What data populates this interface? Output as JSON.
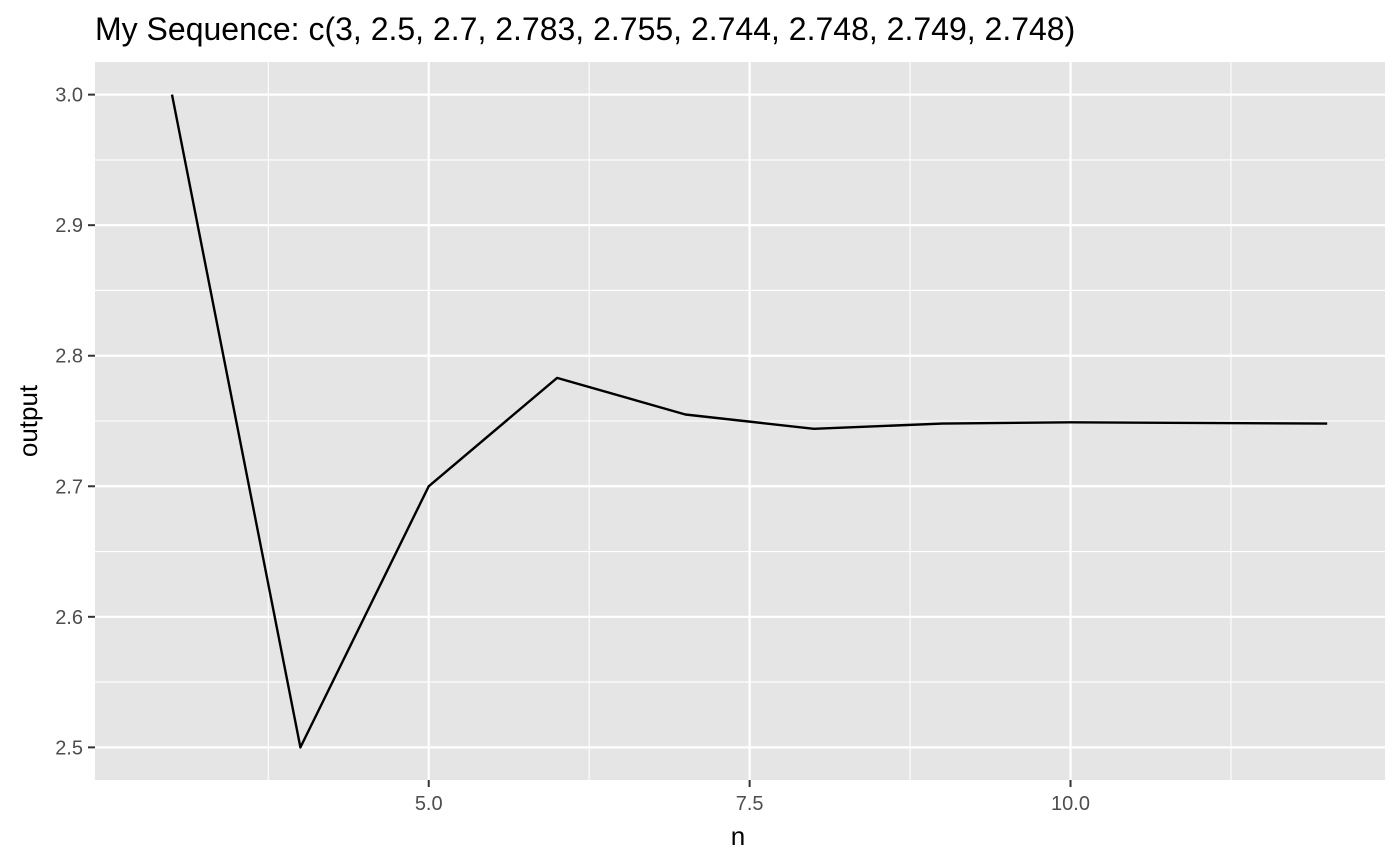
{
  "chart_data": {
    "type": "line",
    "title": "My Sequence: c(3, 2.5, 2.7, 2.783, 2.755, 2.744, 2.748, 2.749, 2.748)",
    "xlabel": "n",
    "ylabel": "output",
    "x": [
      3,
      4,
      5,
      6,
      7,
      8,
      9,
      10,
      12
    ],
    "y": [
      3.0,
      2.5,
      2.7,
      2.783,
      2.755,
      2.744,
      2.748,
      2.749,
      2.748
    ],
    "xlim": [
      2.4,
      12.45
    ],
    "ylim": [
      2.475,
      3.025
    ],
    "x_ticks": [
      5.0,
      7.5,
      10.0
    ],
    "x_tick_labels": [
      "5.0",
      "7.5",
      "10.0"
    ],
    "x_minor_ticks": [
      3.75,
      6.25,
      8.75,
      11.25
    ],
    "y_ticks": [
      2.5,
      2.6,
      2.7,
      2.8,
      2.9,
      3.0
    ],
    "y_tick_labels": [
      "2.5",
      "2.6",
      "2.7",
      "2.8",
      "2.9",
      "3.0"
    ],
    "y_minor_ticks": [
      2.55,
      2.65,
      2.75,
      2.85,
      2.95
    ],
    "grid": true,
    "legend": "none",
    "colors": {
      "panel": "#e5e5e5",
      "grid": "#ffffff",
      "line": "#000000",
      "tick_text": "#4d4d4d"
    }
  }
}
